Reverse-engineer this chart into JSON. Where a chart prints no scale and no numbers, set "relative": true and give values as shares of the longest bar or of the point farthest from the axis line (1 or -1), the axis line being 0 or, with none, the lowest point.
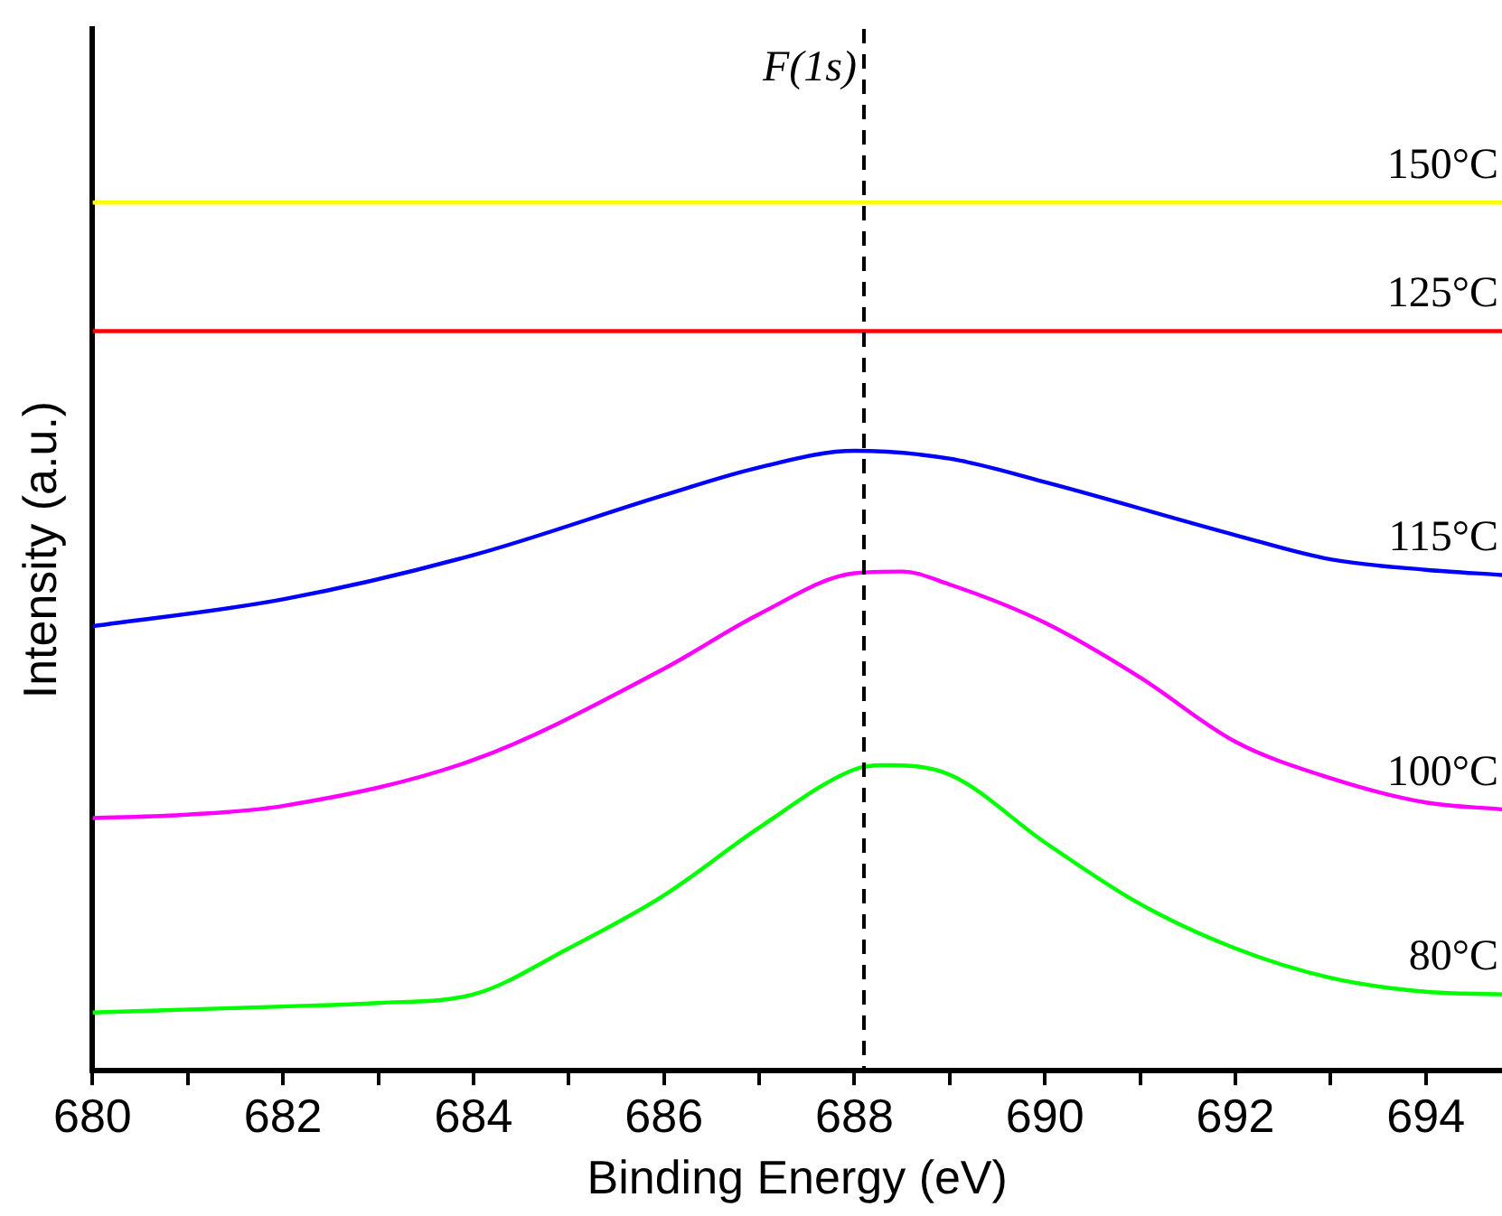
{
  "chart_data": {
    "type": "line",
    "xlabel": "Binding Energy (eV)",
    "ylabel": "Intensity (a.u.)",
    "relative": true,
    "xlim": [
      680,
      694.8
    ],
    "xticks": [
      680,
      {
        "value": 681,
        "label": null
      },
      682,
      {
        "value": 683,
        "label": null
      },
      684,
      {
        "value": 685,
        "label": null
      },
      686,
      {
        "value": 687,
        "label": null
      },
      688,
      {
        "value": 689,
        "label": null
      },
      690,
      {
        "value": 691,
        "label": null
      },
      692,
      {
        "value": 693,
        "label": null
      },
      694
    ],
    "series": [
      {
        "name": "150°C",
        "color": "#ffff00",
        "x": [
          680,
          694.8
        ],
        "values": [
          1,
          1
        ]
      },
      {
        "name": "125°C",
        "color": "#ff0000",
        "x": [
          680,
          694.8
        ],
        "values": [
          0.852,
          0.852
        ]
      },
      {
        "name": "115°C",
        "color": "#0000ff",
        "x": [
          680,
          682,
          684,
          686,
          687,
          688,
          689,
          690,
          692,
          693,
          694,
          694.8
        ],
        "values": [
          0.512,
          0.543,
          0.594,
          0.663,
          0.695,
          0.714,
          0.705,
          0.678,
          0.617,
          0.589,
          0.577,
          0.571
        ]
      },
      {
        "name": "100°C",
        "color": "#ff00ff",
        "x": [
          680,
          681,
          682,
          684,
          686,
          687,
          688,
          688.5,
          689,
          690,
          691,
          692,
          693,
          694,
          694.8
        ],
        "values": [
          0.291,
          0.295,
          0.305,
          0.358,
          0.463,
          0.526,
          0.573,
          0.575,
          0.56,
          0.516,
          0.453,
          0.379,
          0.337,
          0.309,
          0.301
        ]
      },
      {
        "name": "80°C",
        "color": "#00ff00",
        "x": [
          680,
          682,
          683,
          684,
          685,
          686,
          687,
          688,
          688.3,
          689,
          690,
          691,
          692,
          693,
          694,
          694.8
        ],
        "values": [
          0.067,
          0.074,
          0.078,
          0.088,
          0.141,
          0.202,
          0.28,
          0.347,
          0.352,
          0.341,
          0.263,
          0.192,
          0.141,
          0.107,
          0.091,
          0.088
        ]
      }
    ],
    "ref_lines": [
      {
        "axis": "x",
        "value": 688.1,
        "label": "F(1s)",
        "color": "#000000",
        "line_style": "dashed"
      }
    ],
    "grid": false,
    "legend": false,
    "marker": "none",
    "line_style": "solid"
  }
}
